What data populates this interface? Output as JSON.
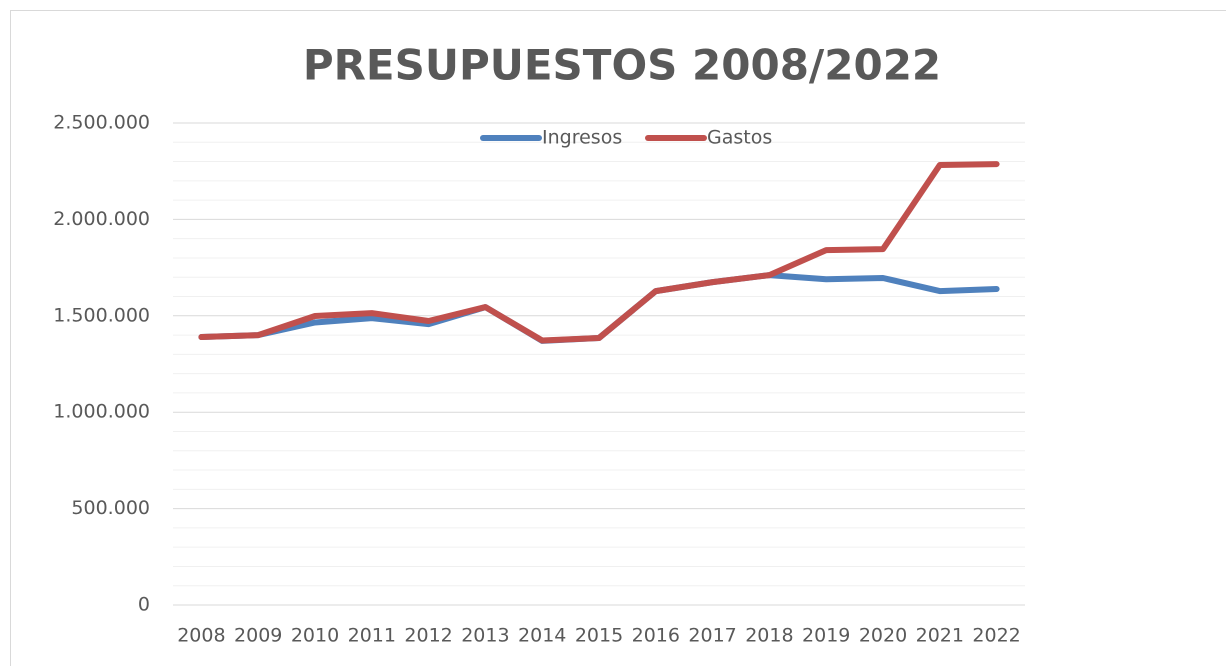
{
  "chart_data": {
    "type": "line",
    "title": "PRESUPUESTOS 2008/2022",
    "categories": [
      "2008",
      "2009",
      "2010",
      "2011",
      "2012",
      "2013",
      "2014",
      "2015",
      "2016",
      "2017",
      "2018",
      "2019",
      "2020",
      "2021",
      "2022"
    ],
    "series": [
      {
        "name": "Ingresos",
        "color": "#4f81bd",
        "values": [
          1390000,
          1400000,
          1465000,
          1488000,
          1457000,
          1545000,
          1370000,
          1385000,
          1628000,
          1675000,
          1711000,
          1690000,
          1696000,
          1628000,
          1639000
        ]
      },
      {
        "name": "Gastos",
        "color": "#c0504d",
        "values": [
          1390000,
          1400000,
          1499000,
          1514000,
          1473000,
          1545000,
          1372000,
          1385000,
          1628000,
          1675000,
          1711000,
          1841000,
          1846000,
          2282000,
          2287000
        ]
      }
    ],
    "ylim": [
      0,
      2500000
    ],
    "yticks": [
      0,
      {
        "value": 500000,
        "label": "500.000"
      },
      {
        "value": 1000000,
        "label": "1.000.000"
      },
      {
        "value": 1500000,
        "label": "1.500.000"
      },
      {
        "value": 2000000,
        "label": "2.000.000"
      },
      {
        "value": 2500000,
        "label": "2.500.000"
      }
    ],
    "grid": true,
    "legend": "top"
  }
}
